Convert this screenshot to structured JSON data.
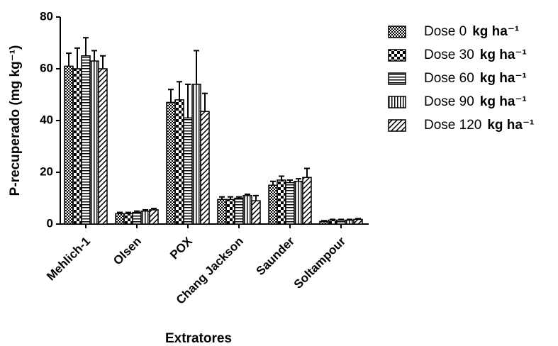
{
  "chart_data": {
    "type": "bar",
    "y_label": "P-recuperado (mg kg⁻¹)",
    "x_label": "Extratores",
    "legend_unit": "kg ha⁻¹",
    "categories": [
      "Mehlich-1",
      "Olsen",
      "POX",
      "Chang Jackson",
      "Saunder",
      "Soltampour"
    ],
    "series": [
      {
        "name": "Dose 0",
        "values": [
          61,
          4,
          47,
          9.5,
          15,
          1
        ],
        "errors": [
          5,
          0.5,
          5,
          1,
          1.5,
          0.3
        ]
      },
      {
        "name": "Dose 30",
        "values": [
          60,
          4,
          48,
          9.5,
          17,
          1.5
        ],
        "errors": [
          8,
          0.5,
          7,
          1,
          1.5,
          0.3
        ]
      },
      {
        "name": "Dose 60",
        "values": [
          65,
          4.5,
          41,
          10,
          16,
          1.5
        ],
        "errors": [
          7,
          0.5,
          13,
          0.5,
          1,
          0.3
        ]
      },
      {
        "name": "Dose 90",
        "values": [
          63,
          5,
          54,
          11,
          16.5,
          1.5
        ],
        "errors": [
          4,
          0.5,
          13,
          0.5,
          1,
          0.3
        ]
      },
      {
        "name": "Dose 120",
        "values": [
          60,
          5.5,
          43.5,
          9,
          18,
          1.8
        ],
        "errors": [
          5,
          0.5,
          7,
          2,
          3.5,
          0.3
        ]
      }
    ],
    "ylim": [
      0,
      80
    ],
    "yticks": [
      0,
      20,
      40,
      60,
      80
    ]
  }
}
